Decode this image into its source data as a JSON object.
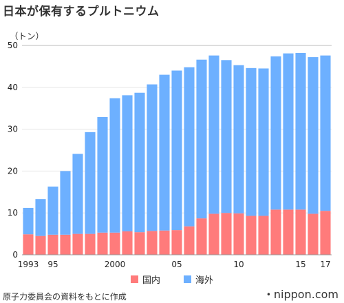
{
  "title": "日本が保有するプルトニウム",
  "unit_label": "（トン）",
  "source": "原子力委員会の資料をもとに作成",
  "brand": "nippon.com",
  "colors": {
    "domestic": "#ff7b7b",
    "overseas": "#6db0ff",
    "grid": "#e6e6e6",
    "axis": "#999999"
  },
  "chart_data": {
    "type": "bar",
    "stacked": true,
    "ylim": [
      0,
      50
    ],
    "yticks": [
      0,
      10,
      20,
      30,
      40,
      50
    ],
    "categories": [
      "1993",
      "1994",
      "1995",
      "1996",
      "1997",
      "1998",
      "1999",
      "2000",
      "2001",
      "2002",
      "2003",
      "2004",
      "2005",
      "2006",
      "2007",
      "2008",
      "2009",
      "2010",
      "2011",
      "2012",
      "2013",
      "2014",
      "2015",
      "2016",
      "2017"
    ],
    "xtick_labels": {
      "1993": "1993",
      "1995": "95",
      "2000": "2000",
      "2005": "05",
      "2010": "10",
      "2015": "15",
      "2017": "17"
    },
    "series": [
      {
        "name": "国内",
        "color": "#ff7b7b",
        "values": [
          4.9,
          4.5,
          4.8,
          4.8,
          5.0,
          5.0,
          5.3,
          5.3,
          5.6,
          5.4,
          5.7,
          5.8,
          5.9,
          6.8,
          8.7,
          9.8,
          10.0,
          9.9,
          9.3,
          9.3,
          10.8,
          10.8,
          10.8,
          9.8,
          10.5
        ]
      },
      {
        "name": "海外",
        "color": "#6db0ff",
        "values": [
          6.3,
          8.8,
          11.5,
          15.2,
          19.1,
          24.3,
          27.6,
          32.1,
          32.5,
          33.3,
          35.0,
          37.2,
          38.1,
          38.0,
          37.9,
          37.8,
          36.5,
          35.4,
          35.3,
          35.2,
          36.6,
          37.3,
          37.4,
          37.4,
          37.1
        ]
      }
    ]
  }
}
